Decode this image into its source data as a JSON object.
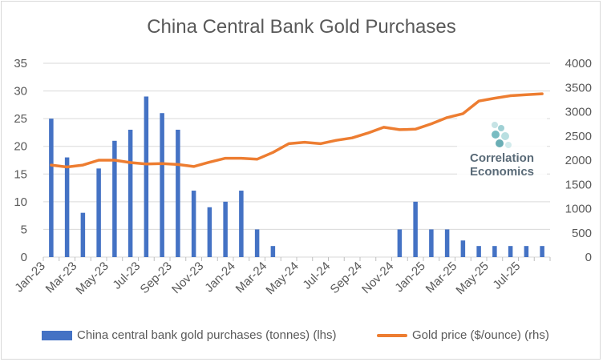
{
  "chart_data": {
    "type": "bar+line",
    "title": "China Central Bank Gold Purchases",
    "x_tick_labels": [
      "Jan-23",
      "Mar-23",
      "May-23",
      "Jul-23",
      "Sep-23",
      "Nov-23",
      "Jan-24",
      "Mar-24",
      "May-24",
      "Jul-24",
      "Sep-24",
      "Nov-24",
      "Jan-25",
      "Mar-25",
      "May-25",
      "Jul-25"
    ],
    "categories": [
      "Jan-23",
      "Feb-23",
      "Mar-23",
      "Apr-23",
      "May-23",
      "Jun-23",
      "Jul-23",
      "Aug-23",
      "Sep-23",
      "Oct-23",
      "Nov-23",
      "Dec-23",
      "Jan-24",
      "Feb-24",
      "Mar-24",
      "Apr-24",
      "May-24",
      "Jun-24",
      "Jul-24",
      "Aug-24",
      "Sep-24",
      "Oct-24",
      "Nov-24",
      "Dec-24",
      "Jan-25",
      "Feb-25",
      "Mar-25",
      "Apr-25",
      "May-25",
      "Jun-25",
      "Jul-25",
      "Aug-25"
    ],
    "left_axis": {
      "ylim": [
        0,
        35
      ],
      "ticks": [
        "0",
        "5",
        "10",
        "15",
        "20",
        "25",
        "30",
        "35"
      ]
    },
    "right_axis": {
      "ylim": [
        0,
        4000
      ],
      "ticks": [
        "0",
        "500",
        "1000",
        "1500",
        "2000",
        "2500",
        "3000",
        "3500",
        "4000"
      ]
    },
    "series": [
      {
        "name": "China central bank gold purchases (tonnes) (lhs)",
        "kind": "bar",
        "axis": "left",
        "color": "#4472c4",
        "values": [
          25,
          18,
          8,
          16,
          21,
          23,
          29,
          26,
          23,
          12,
          9,
          10,
          12,
          5,
          2,
          0,
          0,
          0,
          0,
          0,
          0,
          0,
          5,
          10,
          5,
          5,
          3,
          2,
          2,
          2,
          2,
          2
        ]
      },
      {
        "name": "Gold price ($/ounce) (rhs)",
        "kind": "line",
        "axis": "right",
        "color": "#ed7d31",
        "values": [
          1900,
          1860,
          1900,
          2000,
          2000,
          1950,
          1920,
          1930,
          1910,
          1870,
          1960,
          2040,
          2040,
          2020,
          2160,
          2340,
          2370,
          2340,
          2410,
          2460,
          2560,
          2680,
          2630,
          2640,
          2750,
          2880,
          2960,
          3220,
          3280,
          3330,
          3350,
          3370
        ]
      }
    ],
    "legend_position": "bottom",
    "grid": "horizontal"
  },
  "watermark": {
    "line1": "Correlation",
    "line2": "Economics"
  }
}
